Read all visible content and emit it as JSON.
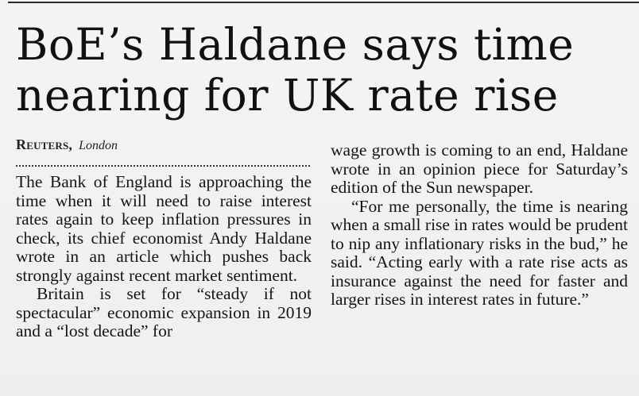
{
  "article": {
    "headline": "BoE’s Haldane says time nearing for UK rate rise",
    "byline": {
      "agency": "Reuters,",
      "city": "London"
    },
    "left_column": [
      "The Bank of England is approaching the time when it will need to raise interest rates again to keep inflation pressures in check, its chief economist Andy Haldane wrote in an article which pushes back strongly against recent market sentiment.",
      "Britain is set for “steady if not spectacular” economic expansion in 2019 and a “lost decade” for"
    ],
    "right_column": [
      "wage growth is coming to an end, Haldane wrote in an opinion piece for Saturday’s edition of the Sun newspaper.",
      "“For me personally, the time is nearing when a small rise in rates would be prudent to nip any inflationary risks in the bud,” he said. “Acting early with a rate rise acts as insurance against the need for faster and larger rises in interest rates in future.”"
    ]
  }
}
